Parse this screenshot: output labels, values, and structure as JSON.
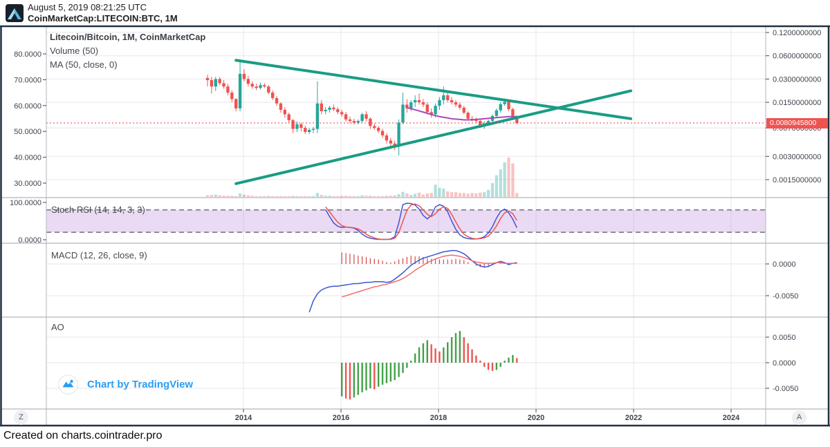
{
  "header": {
    "datetime": "August 5, 2019 08:21:25 UTC",
    "symbol": "CoinMarketCap:LITECOIN:BTC, 1M"
  },
  "footer": {
    "text": "Created on charts.cointrader.pro"
  },
  "toolbar": {
    "zoom_button": "Z",
    "auto_button": "A"
  },
  "attribution": {
    "label": "Chart by TradingView"
  },
  "panes": {
    "main": {
      "legend": {
        "title": "Litecoin/Bitcoin, 1M, CoinMarketCap",
        "volume": "Volume (50)",
        "ma": "MA (50, close, 0)"
      },
      "left_axis": [
        {
          "label": "80.0000",
          "v": 80
        },
        {
          "label": "70.0000",
          "v": 70
        },
        {
          "label": "60.0000",
          "v": 60
        },
        {
          "label": "50.0000",
          "v": 50
        },
        {
          "label": "40.0000",
          "v": 40
        },
        {
          "label": "30.0000",
          "v": 30
        }
      ],
      "price_line": {
        "label": "0.0080945800",
        "price": 0.00809458
      }
    },
    "stoch": {
      "label": "Stoch RSI (14, 14, 3, 3)",
      "axis": [
        {
          "label": "100.0000",
          "v": 100
        },
        {
          "label": "0.0000",
          "v": 0
        }
      ],
      "upper": 80,
      "lower": 20
    },
    "macd": {
      "label": "MACD (12, 26, close, 9)",
      "axis": [
        {
          "label": "0.0000",
          "v": 0
        },
        {
          "label": "-0.0050",
          "v": -0.005
        }
      ]
    },
    "ao": {
      "label": "AO",
      "axis": [
        {
          "label": "0.0050",
          "v": 0.005
        },
        {
          "label": "0.0000",
          "v": 0
        },
        {
          "label": "-0.0050",
          "v": -0.005
        }
      ]
    }
  },
  "time_axis": {
    "years": [
      2014,
      2016,
      2018,
      2020,
      2022,
      2024
    ]
  },
  "colors": {
    "up": "#26a69a",
    "down": "#ef5350",
    "vol_up": "rgba(38,166,154,0.35)",
    "vol_down": "rgba(239,83,80,0.35)",
    "trend": "#1a9c84",
    "ma": "#ab47bc",
    "grid": "#e4e7ee",
    "frame": "#223140",
    "divider": "#b2b5bd",
    "axis_text": "#3f434c",
    "stoch_k": "#4054d6",
    "stoch_d": "#ef5350",
    "stoch_band": "rgba(187,134,219,0.30)",
    "stoch_dash": "#62666f",
    "macd_line": "#3a56d4",
    "macd_signal": "#f26c6c",
    "macd_hist": "#d64545",
    "ao_up": "#43a047",
    "ao_down": "#ef5350",
    "price_line": "#f23645",
    "tag_bg": "#ef5350",
    "tv_blue": "#2a9df4"
  },
  "chart_data": {
    "type": "candlestick",
    "title": "Litecoin/Bitcoin, 1M, CoinMarketCap",
    "interval": "1M",
    "start_month": "2013-04",
    "price_scale": {
      "type": "log",
      "right_ticks": [
        {
          "label": "0.1200000000",
          "p": 0.12
        },
        {
          "label": "0.0600000000",
          "p": 0.06
        },
        {
          "label": "0.0300000000",
          "p": 0.03
        },
        {
          "label": "0.0150000000",
          "p": 0.015
        },
        {
          "label": "0.0070000000",
          "p": 0.007
        },
        {
          "label": "0.0030000000",
          "p": 0.003
        },
        {
          "label": "0.0015000000",
          "p": 0.0015
        }
      ]
    },
    "current_price": 0.00809458,
    "candles": [
      [
        0.031,
        0.034,
        0.024,
        0.029
      ],
      [
        0.029,
        0.032,
        0.0195,
        0.024
      ],
      [
        0.024,
        0.032,
        0.021,
        0.03
      ],
      [
        0.03,
        0.032,
        0.025,
        0.0265
      ],
      [
        0.0265,
        0.029,
        0.0225,
        0.024
      ],
      [
        0.024,
        0.026,
        0.0185,
        0.02
      ],
      [
        0.02,
        0.0215,
        0.015,
        0.0165
      ],
      [
        0.0165,
        0.017,
        0.0115,
        0.0125
      ],
      [
        0.0125,
        0.052,
        0.0115,
        0.035
      ],
      [
        0.035,
        0.04,
        0.028,
        0.03
      ],
      [
        0.03,
        0.033,
        0.024,
        0.026
      ],
      [
        0.026,
        0.028,
        0.0225,
        0.024
      ],
      [
        0.024,
        0.026,
        0.0215,
        0.023
      ],
      [
        0.023,
        0.027,
        0.022,
        0.025
      ],
      [
        0.025,
        0.0265,
        0.023,
        0.024
      ],
      [
        0.024,
        0.025,
        0.019,
        0.02
      ],
      [
        0.02,
        0.0215,
        0.016,
        0.017
      ],
      [
        0.017,
        0.018,
        0.0135,
        0.0145
      ],
      [
        0.0145,
        0.015,
        0.011,
        0.012
      ],
      [
        0.012,
        0.013,
        0.0095,
        0.0105
      ],
      [
        0.0105,
        0.011,
        0.0082,
        0.0088
      ],
      [
        0.0088,
        0.0092,
        0.006,
        0.0068
      ],
      [
        0.0068,
        0.0085,
        0.0062,
        0.0078
      ],
      [
        0.0078,
        0.0082,
        0.0063,
        0.007
      ],
      [
        0.007,
        0.0075,
        0.0058,
        0.0062
      ],
      [
        0.0062,
        0.007,
        0.0058,
        0.0066
      ],
      [
        0.0066,
        0.0072,
        0.006,
        0.0068
      ],
      [
        0.0068,
        0.028,
        0.006,
        0.0145
      ],
      [
        0.0145,
        0.016,
        0.0105,
        0.0115
      ],
      [
        0.0115,
        0.013,
        0.0105,
        0.012
      ],
      [
        0.012,
        0.0135,
        0.011,
        0.0128
      ],
      [
        0.0128,
        0.014,
        0.0115,
        0.0122
      ],
      [
        0.0122,
        0.013,
        0.0105,
        0.0112
      ],
      [
        0.0112,
        0.012,
        0.0098,
        0.0105
      ],
      [
        0.0105,
        0.0112,
        0.0085,
        0.009
      ],
      [
        0.009,
        0.0098,
        0.008,
        0.0086
      ],
      [
        0.0086,
        0.0092,
        0.0078,
        0.0082
      ],
      [
        0.0082,
        0.009,
        0.0078,
        0.0086
      ],
      [
        0.0086,
        0.011,
        0.0082,
        0.0105
      ],
      [
        0.0105,
        0.0115,
        0.0085,
        0.0092
      ],
      [
        0.0092,
        0.0096,
        0.0068,
        0.0074
      ],
      [
        0.0074,
        0.008,
        0.0066,
        0.007
      ],
      [
        0.007,
        0.0074,
        0.006,
        0.0064
      ],
      [
        0.0064,
        0.0068,
        0.0052,
        0.0056
      ],
      [
        0.0056,
        0.006,
        0.0044,
        0.0048
      ],
      [
        0.0048,
        0.0052,
        0.004,
        0.0044
      ],
      [
        0.0044,
        0.0048,
        0.0036,
        0.004
      ],
      [
        0.004,
        0.009,
        0.0031,
        0.0082
      ],
      [
        0.0082,
        0.02,
        0.0078,
        0.014
      ],
      [
        0.014,
        0.0165,
        0.011,
        0.0125
      ],
      [
        0.0125,
        0.016,
        0.0115,
        0.015
      ],
      [
        0.015,
        0.0185,
        0.013,
        0.016
      ],
      [
        0.016,
        0.0195,
        0.014,
        0.015
      ],
      [
        0.015,
        0.0165,
        0.013,
        0.014
      ],
      [
        0.014,
        0.015,
        0.0105,
        0.0112
      ],
      [
        0.0112,
        0.0125,
        0.0095,
        0.0105
      ],
      [
        0.0105,
        0.0145,
        0.0095,
        0.0135
      ],
      [
        0.0135,
        0.0175,
        0.012,
        0.016
      ],
      [
        0.016,
        0.024,
        0.014,
        0.0185
      ],
      [
        0.0185,
        0.02,
        0.015,
        0.016
      ],
      [
        0.016,
        0.0175,
        0.014,
        0.015
      ],
      [
        0.015,
        0.016,
        0.013,
        0.014
      ],
      [
        0.014,
        0.015,
        0.012,
        0.0128
      ],
      [
        0.0128,
        0.0135,
        0.0105,
        0.011
      ],
      [
        0.011,
        0.0115,
        0.0088,
        0.0092
      ],
      [
        0.0092,
        0.01,
        0.0085,
        0.009
      ],
      [
        0.009,
        0.0095,
        0.0082,
        0.0086
      ],
      [
        0.0086,
        0.009,
        0.007,
        0.0074
      ],
      [
        0.0074,
        0.0085,
        0.0068,
        0.008
      ],
      [
        0.008,
        0.009,
        0.0076,
        0.0086
      ],
      [
        0.0086,
        0.0105,
        0.0082,
        0.01
      ],
      [
        0.01,
        0.0125,
        0.0095,
        0.0118
      ],
      [
        0.0118,
        0.015,
        0.011,
        0.0142
      ],
      [
        0.0142,
        0.0168,
        0.0135,
        0.0152
      ],
      [
        0.0152,
        0.016,
        0.0115,
        0.0122
      ],
      [
        0.0122,
        0.0128,
        0.0092,
        0.0098
      ],
      [
        0.0098,
        0.0102,
        0.0078,
        0.0081
      ]
    ],
    "volume": [
      4,
      5,
      6,
      4,
      3,
      3,
      3,
      2,
      9,
      6,
      4,
      3,
      2,
      2,
      2,
      3,
      2,
      2,
      2,
      2,
      2,
      3,
      2,
      2,
      2,
      2,
      2,
      10,
      5,
      3,
      3,
      2,
      2,
      3,
      3,
      2,
      2,
      2,
      4,
      3,
      3,
      2,
      2,
      2,
      3,
      3,
      4,
      7,
      13,
      9,
      5,
      8,
      11,
      6,
      9,
      10,
      31,
      23,
      21,
      14,
      12,
      12,
      10,
      10,
      8,
      10,
      9,
      11,
      12,
      18,
      35,
      55,
      70,
      88,
      100,
      85,
      10
    ],
    "ma50": {
      "start_index": 49,
      "values": [
        0.0128,
        0.0124,
        0.012,
        0.0116,
        0.0112,
        0.0108,
        0.0104,
        0.0101,
        0.0098,
        0.0096,
        0.0094,
        0.0092,
        0.0091,
        0.009,
        0.0089,
        0.0089,
        0.0089,
        0.009,
        0.0091,
        0.0092,
        0.0093,
        0.0094,
        0.0095,
        0.0096,
        0.0097,
        0.0098,
        0.0098,
        0.0098
      ]
    },
    "trendlines": [
      {
        "name": "upper",
        "i1": 7,
        "p1": 0.0524,
        "i2": 104,
        "p2": 0.0092
      },
      {
        "name": "lower",
        "i1": 7,
        "p1": 0.00133,
        "i2": 104,
        "p2": 0.0211
      }
    ],
    "stoch": {
      "start_index": 29,
      "k": [
        81,
        62,
        45,
        36,
        33,
        34,
        33,
        31,
        25,
        15,
        8,
        4,
        2,
        1,
        1,
        1,
        2,
        8,
        45,
        94,
        98,
        97,
        93,
        82,
        65,
        56,
        65,
        88,
        94,
        90,
        75,
        50,
        28,
        13,
        6,
        3,
        2,
        2,
        4,
        8,
        18,
        35,
        58,
        76,
        82,
        72,
        55,
        32
      ],
      "d": [
        88,
        75,
        60,
        47,
        38,
        34,
        33,
        32,
        29,
        23,
        15,
        9,
        5,
        2,
        1,
        1,
        1,
        4,
        19,
        49,
        79,
        93,
        96,
        91,
        80,
        68,
        62,
        70,
        82,
        88,
        84,
        68,
        48,
        29,
        15,
        8,
        4,
        2,
        3,
        5,
        10,
        21,
        37,
        57,
        72,
        77,
        70,
        52
      ]
    },
    "macd": {
      "line_start": 25,
      "line": [
        -0.0076,
        -0.0058,
        -0.0047,
        -0.0041,
        -0.0038,
        -0.0036,
        -0.0035,
        -0.0035,
        -0.0034,
        -0.0033,
        -0.0032,
        -0.0031,
        -0.0031,
        -0.003,
        -0.0029,
        -0.0029,
        -0.0028,
        -0.0028,
        -0.0028,
        -0.0029,
        -0.0028,
        -0.0024,
        -0.0019,
        -0.0014,
        -0.0008,
        -0.0002,
        0.0002,
        0.0006,
        0.0009,
        0.0011,
        0.0013,
        0.0015,
        0.0017,
        0.0019,
        0.002,
        0.0021,
        0.0021,
        0.0019,
        0.0016,
        0.0011,
        0.0005,
        0.0,
        -0.0003,
        -0.0005,
        -0.0004,
        -0.0001,
        0.0002,
        0.0004,
        0.0002,
        -0.0001,
        0.0001,
        0.0002
      ],
      "signal_start": 33,
      "signal": [
        -0.0052,
        -0.005,
        -0.0048,
        -0.0046,
        -0.0044,
        -0.0042,
        -0.004,
        -0.0038,
        -0.0036,
        -0.0035,
        -0.0033,
        -0.0032,
        -0.003,
        -0.0028,
        -0.0026,
        -0.0023,
        -0.0019,
        -0.0015,
        -0.001,
        -0.0006,
        -0.0002,
        0.0002,
        0.0005,
        0.0008,
        0.001,
        0.0012,
        0.0013,
        0.0014,
        0.0013,
        0.0012,
        0.001,
        0.0008,
        0.0005,
        0.0003,
        0.0002,
        0.0001,
        0.0001,
        0.0001,
        0.0002,
        0.0002,
        0.0001,
        0.0001,
        0.0001,
        0.0001
      ]
    },
    "ao": {
      "start_index": 33,
      "values": [
        -0.0066,
        -0.007,
        -0.0072,
        -0.0068,
        -0.0063,
        -0.0058,
        -0.0054,
        -0.005,
        -0.0052,
        -0.0047,
        -0.0043,
        -0.004,
        -0.0037,
        -0.0034,
        -0.0028,
        -0.002,
        -0.001,
        0.0004,
        0.0018,
        0.003,
        0.0038,
        0.0044,
        0.0036,
        0.0028,
        0.0022,
        0.003,
        0.004,
        0.005,
        0.0058,
        0.0062,
        0.005,
        0.0038,
        0.0026,
        0.0014,
        0.0004,
        -0.0008,
        -0.0014,
        -0.0016,
        -0.0014,
        -0.0008,
        0.0004,
        0.001,
        0.0015,
        0.0009
      ]
    }
  }
}
